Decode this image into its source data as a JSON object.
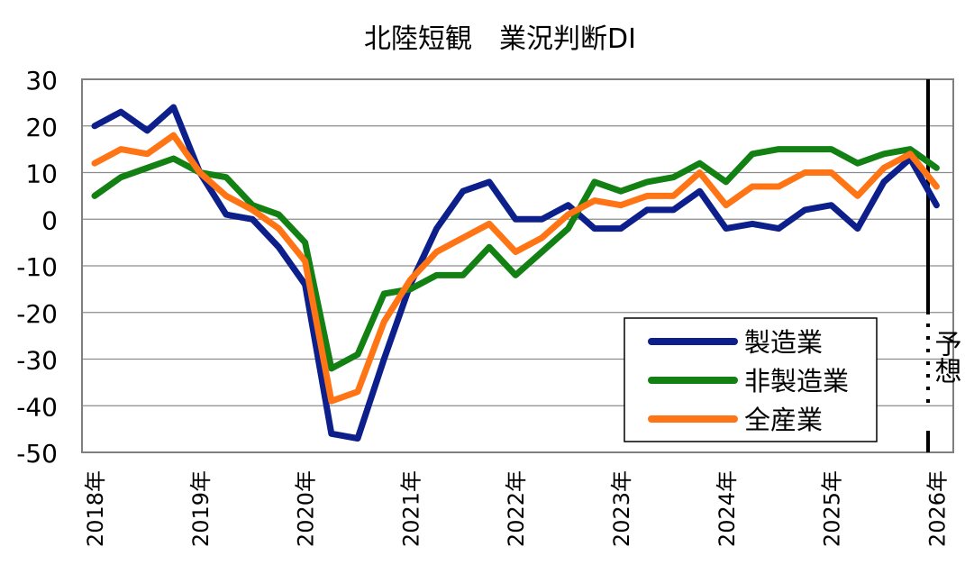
{
  "chart_data": {
    "type": "line",
    "title": "北陸短観　業況判断DI",
    "xlabel": "",
    "ylabel": "",
    "ylim": [
      -50,
      30
    ],
    "yticks": [
      30,
      20,
      10,
      0,
      -10,
      -20,
      -30,
      -40,
      -50
    ],
    "ytick_labels": [
      "30",
      "20",
      "10",
      "0",
      "-10",
      "-20",
      "-30",
      "-40",
      "-50"
    ],
    "grid": true,
    "year_labels": [
      "2018年",
      "2019年",
      "2020年",
      "2021年",
      "2022年",
      "2023年",
      "2024年",
      "2025年",
      "2026年"
    ],
    "forecast_label": "予想",
    "legend_position": "bottom-right",
    "series": [
      {
        "name": "製造業",
        "color": "#0d1f8a",
        "values": [
          20,
          23,
          19,
          24,
          10,
          1,
          0,
          -6,
          -14,
          -46,
          -47,
          -30,
          -14,
          -2,
          6,
          8,
          0,
          0,
          3,
          -2,
          -2,
          2,
          2,
          6,
          -2,
          -1,
          -2,
          2,
          3,
          -2,
          8,
          13,
          3
        ]
      },
      {
        "name": "非製造業",
        "color": "#138013",
        "values": [
          5,
          9,
          11,
          13,
          10,
          9,
          3,
          1,
          -5,
          -32,
          -29,
          -16,
          -15,
          -12,
          -12,
          -6,
          -12,
          -7,
          -2,
          8,
          6,
          8,
          9,
          12,
          8,
          14,
          15,
          15,
          15,
          12,
          14,
          15,
          11
        ]
      },
      {
        "name": "全産業",
        "color": "#ff7414",
        "values": [
          12,
          15,
          14,
          18,
          10,
          5,
          2,
          -2,
          -9,
          -39,
          -37,
          -22,
          -13,
          -7,
          -4,
          -1,
          -7,
          -4,
          1,
          4,
          3,
          5,
          5,
          10,
          3,
          7,
          7,
          10,
          10,
          5,
          11,
          14,
          7
        ]
      }
    ]
  }
}
